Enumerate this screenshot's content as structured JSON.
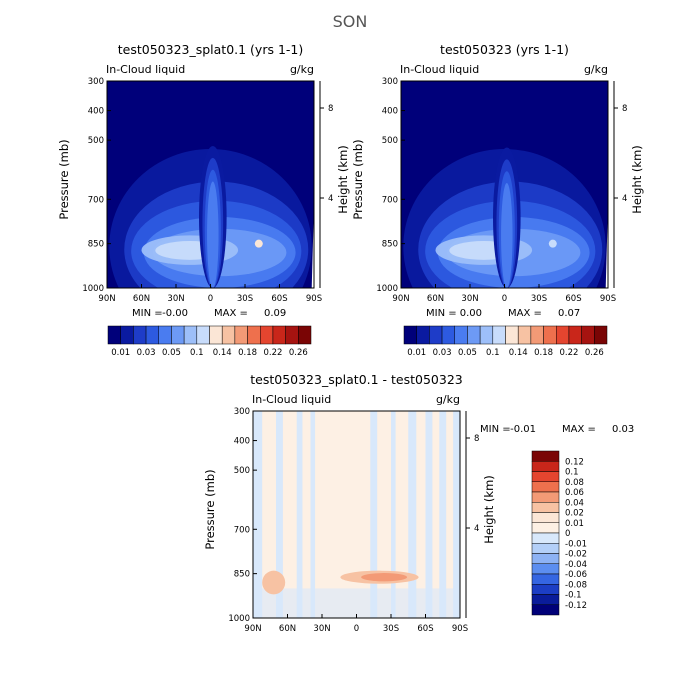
{
  "page_title": "SON",
  "chart_data": [
    {
      "id": "p1",
      "type": "heatmap",
      "title": "test050323_splat0.1 (yrs 1-1)",
      "variable": "In-Cloud liquid",
      "units": "g/kg",
      "xlabel": "",
      "ylabel": "Pressure (mb)",
      "ylabel_right": "Height (km)",
      "x_ticks": [
        "90N",
        "60N",
        "30N",
        "0",
        "30S",
        "60S",
        "90S"
      ],
      "y_ticks": [
        "300",
        "400",
        "500",
        "700",
        "850",
        "1000"
      ],
      "y_ticks_right": [
        "8",
        "4"
      ],
      "stat_min_label": "MIN =",
      "stat_min": "-0.00",
      "stat_max_label": "MAX =",
      "stat_max": "0.09",
      "peak_lat": -2,
      "peak_value": 0.09,
      "colorbar_labels": [
        "0.01",
        "0.03",
        "0.05",
        "0.1",
        "0.14",
        "0.18",
        "0.22",
        "0.26"
      ],
      "colorbar_levels": [
        0.005,
        0.01,
        0.02,
        0.03,
        0.04,
        0.05,
        0.075,
        0.1,
        0.12,
        0.14,
        0.16,
        0.18,
        0.2,
        0.22,
        0.24,
        0.26
      ],
      "colors": [
        "#00007a",
        "#0a1aa0",
        "#1e3cc8",
        "#2d5ae0",
        "#4a7cf0",
        "#6d9af5",
        "#9dbff9",
        "#c8dcfb",
        "#fbe6d6",
        "#f7c2a3",
        "#f39a76",
        "#ee704d",
        "#e4452f",
        "#c9261a",
        "#a61310",
        "#7a0505"
      ]
    },
    {
      "id": "p2",
      "type": "heatmap",
      "title": "test050323 (yrs 1-1)",
      "variable": "In-Cloud liquid",
      "units": "g/kg",
      "xlabel": "",
      "ylabel": "Pressure (mb)",
      "ylabel_right": "Height (km)",
      "x_ticks": [
        "90N",
        "60N",
        "30N",
        "0",
        "30S",
        "60S",
        "90S"
      ],
      "y_ticks": [
        "300",
        "400",
        "500",
        "700",
        "850",
        "1000"
      ],
      "y_ticks_right": [
        "8",
        "4"
      ],
      "stat_min_label": "MIN =",
      "stat_min": "0.00",
      "stat_max_label": "MAX =",
      "stat_max": "0.07",
      "peak_lat": -2,
      "peak_value": 0.07,
      "colorbar_labels": [
        "0.01",
        "0.03",
        "0.05",
        "0.1",
        "0.14",
        "0.18",
        "0.22",
        "0.26"
      ],
      "colorbar_levels": [
        0.005,
        0.01,
        0.02,
        0.03,
        0.04,
        0.05,
        0.075,
        0.1,
        0.12,
        0.14,
        0.16,
        0.18,
        0.2,
        0.22,
        0.24,
        0.26
      ],
      "colors": [
        "#00007a",
        "#0a1aa0",
        "#1e3cc8",
        "#2d5ae0",
        "#4a7cf0",
        "#6d9af5",
        "#9dbff9",
        "#c8dcfb",
        "#fbe6d6",
        "#f7c2a3",
        "#f39a76",
        "#ee704d",
        "#e4452f",
        "#c9261a",
        "#a61310",
        "#7a0505"
      ]
    },
    {
      "id": "p3",
      "type": "heatmap",
      "title": "test050323_splat0.1 - test050323",
      "variable": "In-Cloud liquid",
      "units": "g/kg",
      "xlabel": "",
      "ylabel": "Pressure (mb)",
      "ylabel_right": "Height (km)",
      "x_ticks": [
        "90N",
        "60N",
        "30N",
        "0",
        "30S",
        "60S",
        "90S"
      ],
      "y_ticks": [
        "300",
        "400",
        "500",
        "700",
        "850",
        "1000"
      ],
      "y_ticks_right": [
        "8",
        "4"
      ],
      "stat_min_label": "MIN =",
      "stat_min": "-0.01",
      "stat_max_label": "MAX =",
      "stat_max": "0.03",
      "colorbar_labels": [
        "0.12",
        "0.1",
        "0.08",
        "0.06",
        "0.04",
        "0.02",
        "0.01",
        "0",
        "-0.01",
        "-0.02",
        "-0.04",
        "-0.06",
        "-0.08",
        "-0.1",
        "-0.12"
      ],
      "colors": [
        "#7a0505",
        "#c9261a",
        "#e4452f",
        "#ee704d",
        "#f39a76",
        "#f7c2a3",
        "#fbe6d6",
        "#fdf0e4",
        "#d8e8fb",
        "#b3cff8",
        "#8db2f4",
        "#5c8ef0",
        "#3566e2",
        "#1c3ec4",
        "#0a1c9a",
        "#000078"
      ]
    }
  ]
}
